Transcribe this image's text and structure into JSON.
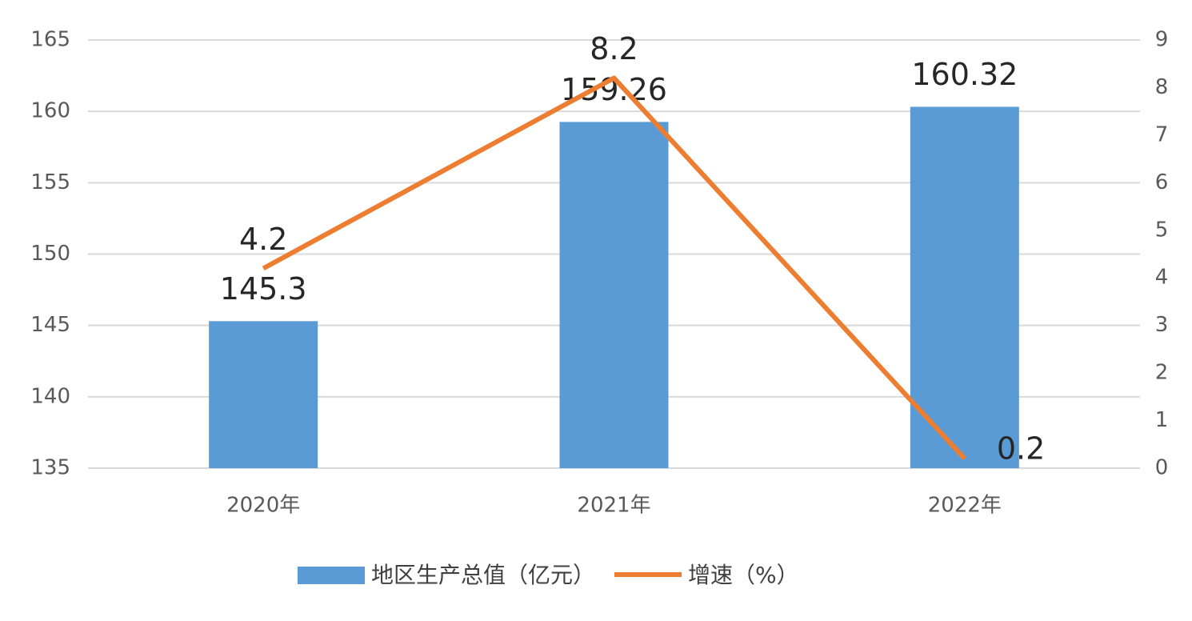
{
  "chart_data": {
    "type": "bar",
    "categories": [
      "2020年",
      "2021年",
      "2022年"
    ],
    "series": [
      {
        "name": "地区生产总值（亿元）",
        "color": "#5b9bd5",
        "values": [
          145.3,
          159.26,
          160.32
        ]
      },
      {
        "name": "增速（%）",
        "color": "#ed7d31",
        "type": "line",
        "axis": "y2",
        "values": [
          4.2,
          8.2,
          0.2
        ]
      }
    ],
    "ylim": [
      135,
      165
    ],
    "yticks": [
      135,
      140,
      145,
      150,
      155,
      160,
      165
    ],
    "y2lim": [
      0,
      9
    ],
    "y2ticks": [
      0,
      1,
      2,
      3,
      4,
      5,
      6,
      7,
      8,
      9
    ],
    "grid": true,
    "legend": "bottom"
  }
}
